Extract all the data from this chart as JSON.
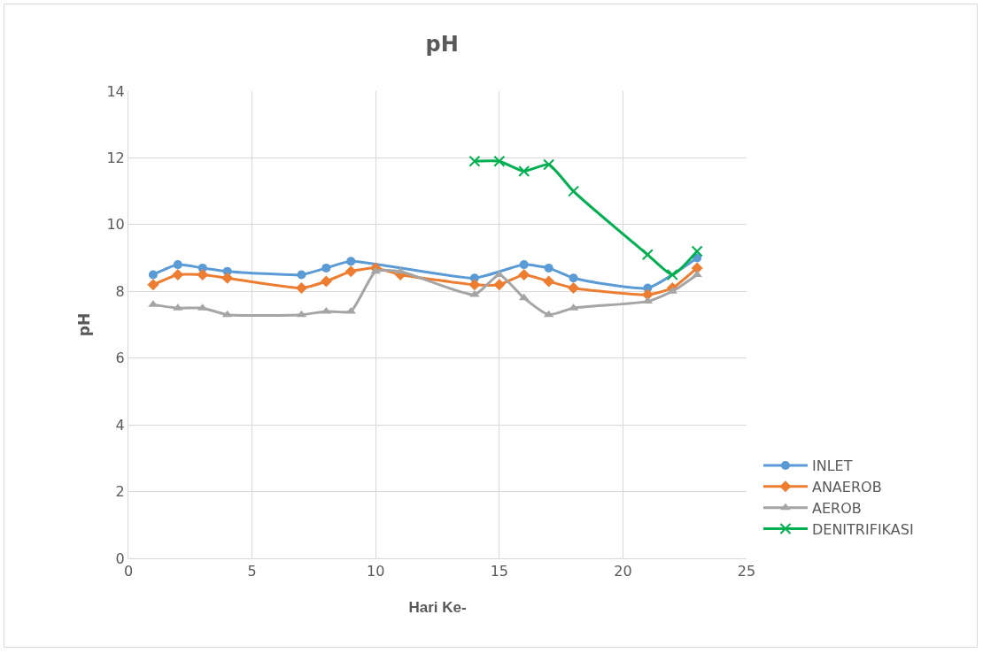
{
  "chart_data": {
    "type": "line",
    "title": "pH",
    "xlabel": "Hari Ke-",
    "ylabel": "pH",
    "xlim": [
      0,
      25
    ],
    "xticks": [
      0,
      5,
      10,
      15,
      20,
      25
    ],
    "ylim": [
      0,
      14
    ],
    "yticks": [
      0,
      2,
      4,
      6,
      8,
      10,
      12,
      14
    ],
    "grid": true,
    "legend": "right",
    "x": [
      1,
      2,
      3,
      4,
      7,
      8,
      9,
      10,
      11,
      14,
      15,
      16,
      17,
      18,
      21,
      22,
      23
    ],
    "series": [
      {
        "name": "INLET",
        "color": "#5b9bd5",
        "marker": "circle",
        "values": [
          8.5,
          8.8,
          8.7,
          8.6,
          8.5,
          8.7,
          8.9,
          null,
          null,
          8.4,
          null,
          8.8,
          8.7,
          8.4,
          8.1,
          null,
          9.0
        ]
      },
      {
        "name": "ANAEROB",
        "color": "#ed7d31",
        "marker": "diamond",
        "values": [
          8.2,
          8.5,
          8.5,
          8.4,
          8.1,
          8.3,
          8.6,
          8.7,
          8.5,
          8.2,
          8.2,
          8.5,
          8.3,
          8.1,
          7.9,
          8.1,
          8.7
        ]
      },
      {
        "name": "AEROB",
        "color": "#a5a5a5",
        "marker": "triangle",
        "values": [
          7.6,
          7.5,
          7.5,
          7.3,
          7.3,
          7.4,
          7.4,
          8.6,
          8.6,
          7.9,
          8.5,
          7.8,
          7.3,
          7.5,
          7.7,
          8.0,
          8.5
        ]
      },
      {
        "name": "DENITRIFIKASI",
        "color": "#00b050",
        "marker": "cross",
        "x": [
          14,
          15,
          16,
          17,
          18,
          21,
          22,
          23
        ],
        "values": [
          11.9,
          11.9,
          11.6,
          11.8,
          11.0,
          9.1,
          8.5,
          9.2
        ]
      }
    ]
  }
}
